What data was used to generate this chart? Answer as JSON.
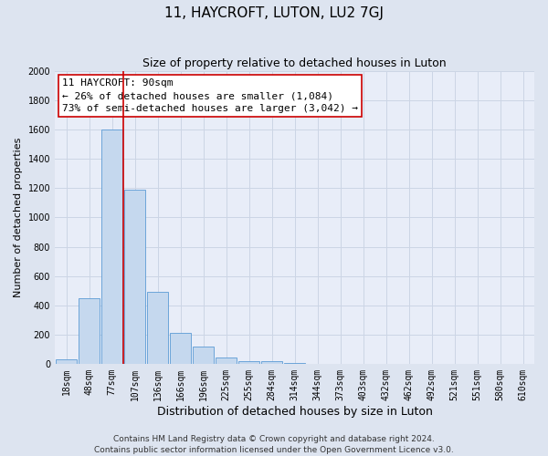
{
  "title": "11, HAYCROFT, LUTON, LU2 7GJ",
  "subtitle": "Size of property relative to detached houses in Luton",
  "xlabel": "Distribution of detached houses by size in Luton",
  "ylabel": "Number of detached properties",
  "categories": [
    "18sqm",
    "48sqm",
    "77sqm",
    "107sqm",
    "136sqm",
    "166sqm",
    "196sqm",
    "225sqm",
    "255sqm",
    "284sqm",
    "314sqm",
    "344sqm",
    "373sqm",
    "403sqm",
    "432sqm",
    "462sqm",
    "492sqm",
    "521sqm",
    "551sqm",
    "580sqm",
    "610sqm"
  ],
  "values": [
    30,
    450,
    1600,
    1190,
    490,
    210,
    120,
    45,
    20,
    15,
    5,
    0,
    0,
    0,
    0,
    0,
    0,
    0,
    0,
    0,
    0
  ],
  "bar_color": "#c5d8ee",
  "bar_edge_color": "#5b9bd5",
  "red_line_color": "#cc0000",
  "red_line_x": 2.5,
  "annotation_box_text_line1": "11 HAYCROFT: 90sqm",
  "annotation_box_text_line2": "← 26% of detached houses are smaller (1,084)",
  "annotation_box_text_line3": "73% of semi-detached houses are larger (3,042) →",
  "annotation_box_edge_color": "#cc0000",
  "annotation_box_face_color": "#ffffff",
  "ylim": [
    0,
    2000
  ],
  "yticks": [
    0,
    200,
    400,
    600,
    800,
    1000,
    1200,
    1400,
    1600,
    1800,
    2000
  ],
  "grid_color": "#ccd5e5",
  "background_color": "#dde4f0",
  "plot_background_color": "#e8edf8",
  "footer_line1": "Contains HM Land Registry data © Crown copyright and database right 2024.",
  "footer_line2": "Contains public sector information licensed under the Open Government Licence v3.0.",
  "title_fontsize": 11,
  "subtitle_fontsize": 9,
  "xlabel_fontsize": 9,
  "ylabel_fontsize": 8,
  "tick_fontsize": 7,
  "footer_fontsize": 6.5,
  "annotation_fontsize": 8
}
